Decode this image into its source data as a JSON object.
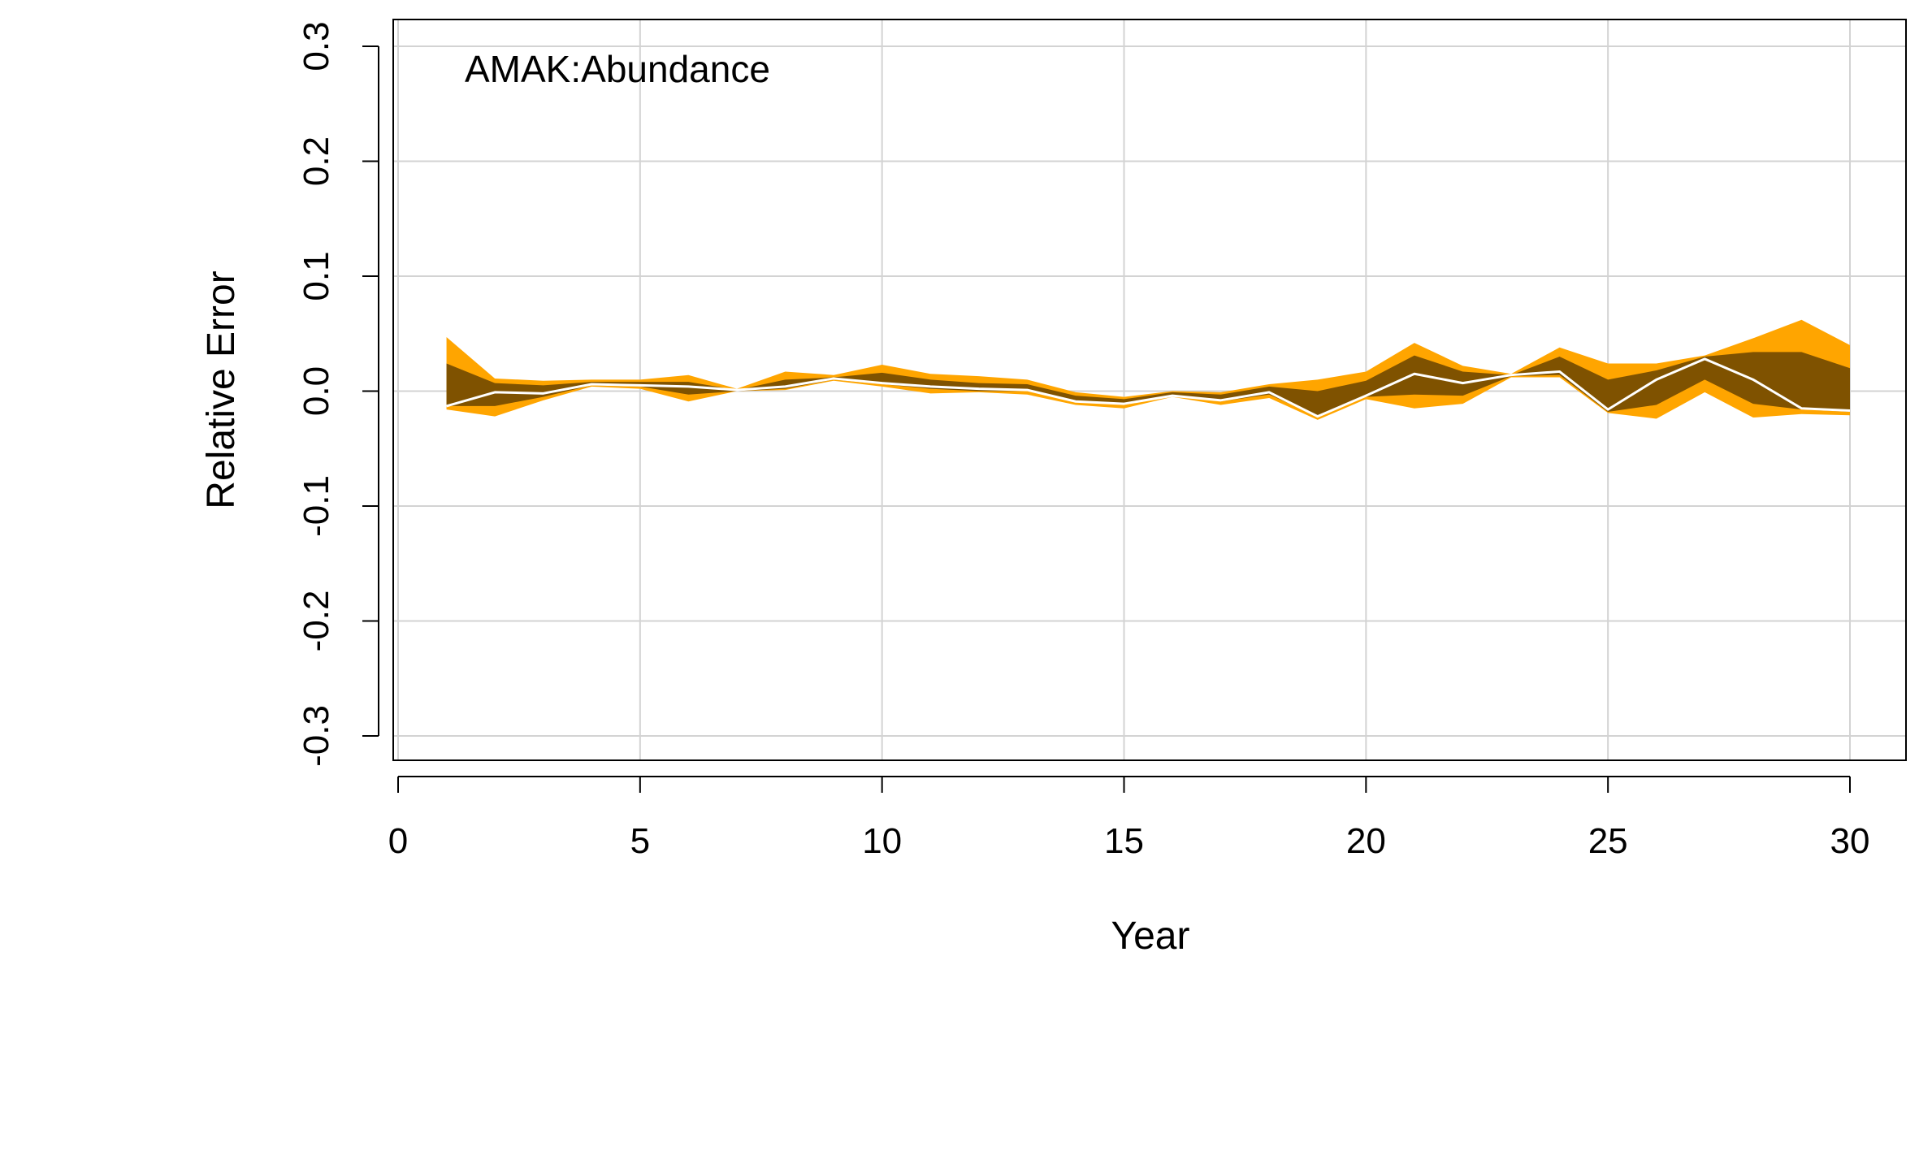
{
  "chart_data": {
    "type": "area",
    "title": "",
    "annotation": "AMAK:Abundance",
    "xlabel": "Year",
    "ylabel": "Relative Error",
    "xlim": [
      0,
      30
    ],
    "ylim": [
      -0.3,
      0.3
    ],
    "x_ticks": [
      0,
      5,
      10,
      15,
      20,
      25,
      30
    ],
    "y_ticks": [
      -0.3,
      -0.2,
      -0.1,
      0.0,
      0.1,
      0.2,
      0.3
    ],
    "grid": true,
    "colors": {
      "outer_band": "#FFA500",
      "inner_band": "#7F5200",
      "median_line": "#FFFFFF",
      "grid": "#D3D3D3",
      "axis": "#000000"
    },
    "x": [
      1,
      2,
      3,
      4,
      5,
      6,
      7,
      8,
      9,
      10,
      11,
      12,
      13,
      14,
      15,
      16,
      17,
      18,
      19,
      20,
      21,
      22,
      23,
      24,
      25,
      26,
      27,
      28,
      29,
      30
    ],
    "series": [
      {
        "role": "outer_upper",
        "values": [
          0.047,
          0.011,
          0.009,
          0.01,
          0.01,
          0.014,
          0.002,
          0.017,
          0.014,
          0.023,
          0.015,
          0.013,
          0.01,
          -0.001,
          -0.005,
          0.0,
          -0.001,
          0.006,
          0.01,
          0.017,
          0.042,
          0.022,
          0.015,
          0.038,
          0.024,
          0.024,
          0.031,
          0.046,
          0.062,
          0.04
        ]
      },
      {
        "role": "inner_upper",
        "values": [
          0.024,
          0.007,
          0.005,
          0.008,
          0.008,
          0.008,
          0.001,
          0.01,
          0.012,
          0.016,
          0.01,
          0.007,
          0.006,
          -0.004,
          -0.007,
          -0.001,
          -0.003,
          0.004,
          0.0,
          0.009,
          0.031,
          0.017,
          0.014,
          0.03,
          0.01,
          0.018,
          0.03,
          0.034,
          0.034,
          0.02
        ]
      },
      {
        "role": "median",
        "values": [
          -0.013,
          -0.001,
          -0.002,
          0.006,
          0.005,
          0.004,
          0.001,
          0.004,
          0.011,
          0.007,
          0.004,
          0.002,
          0.001,
          -0.009,
          -0.011,
          -0.004,
          -0.008,
          -0.001,
          -0.022,
          -0.004,
          0.015,
          0.007,
          0.014,
          0.017,
          -0.016,
          0.01,
          0.028,
          0.01,
          -0.015,
          -0.017
        ]
      },
      {
        "role": "inner_lower",
        "values": [
          -0.013,
          -0.013,
          -0.005,
          0.005,
          0.004,
          -0.003,
          0.0,
          0.002,
          0.01,
          0.006,
          0.002,
          0.0,
          0.0,
          -0.009,
          -0.012,
          -0.004,
          -0.009,
          -0.003,
          -0.022,
          -0.005,
          -0.003,
          -0.004,
          0.013,
          0.014,
          -0.018,
          -0.012,
          0.01,
          -0.011,
          -0.016,
          -0.018
        ]
      },
      {
        "role": "outer_lower",
        "values": [
          -0.016,
          -0.022,
          -0.008,
          0.004,
          0.002,
          -0.009,
          0.0,
          0.001,
          0.009,
          0.004,
          -0.002,
          -0.001,
          -0.003,
          -0.012,
          -0.015,
          -0.005,
          -0.012,
          -0.006,
          -0.025,
          -0.007,
          -0.015,
          -0.011,
          0.012,
          0.012,
          -0.019,
          -0.024,
          -0.001,
          -0.023,
          -0.02,
          -0.021
        ]
      }
    ]
  }
}
